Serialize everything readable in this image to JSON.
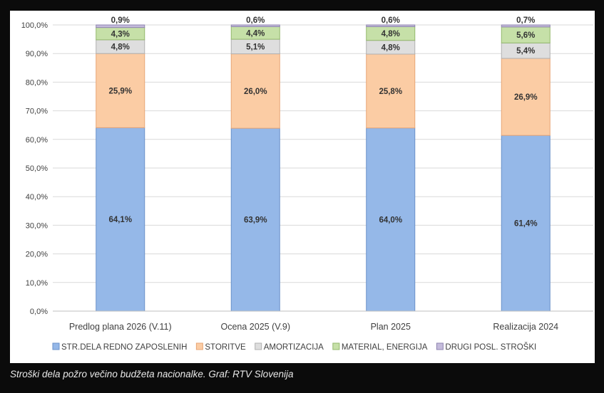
{
  "caption": "Stroški dela požro večino budžeta nacionalke. Graf: RTV Slovenija",
  "chart_data": {
    "type": "stacked-bar-100",
    "categories": [
      "Predlog plana 2026 (V.11)",
      "Ocena 2025 (V.9)",
      "Plan 2025",
      "Realizacija 2024"
    ],
    "ylim": [
      0,
      100
    ],
    "yticks": [
      "0,0%",
      "10,0%",
      "20,0%",
      "30,0%",
      "40,0%",
      "50,0%",
      "60,0%",
      "70,0%",
      "80,0%",
      "90,0%",
      "100,0%"
    ],
    "grid": true,
    "legend_position": "bottom",
    "series": [
      {
        "name": "STR.DELA REDNO ZAPOSLENIH",
        "color": "#95b8e8",
        "stroke": "#6a91c9",
        "values": [
          64.1,
          63.9,
          64.0,
          61.4
        ],
        "labels": [
          "64,1%",
          "63,9%",
          "64,0%",
          "61,4%"
        ]
      },
      {
        "name": "STORITVE",
        "color": "#fbcca4",
        "stroke": "#e8a676",
        "values": [
          25.9,
          26.0,
          25.8,
          26.9
        ],
        "labels": [
          "25,9%",
          "26,0%",
          "25,8%",
          "26,9%"
        ]
      },
      {
        "name": "AMORTIZACIJA",
        "color": "#dedede",
        "stroke": "#b0b0b0",
        "values": [
          4.8,
          5.1,
          4.8,
          5.4
        ],
        "labels": [
          "4,8%",
          "5,1%",
          "4,8%",
          "5,4%"
        ]
      },
      {
        "name": "MATERIAL, ENERGIJA",
        "color": "#c6e0a8",
        "stroke": "#93b86c",
        "values": [
          4.3,
          4.4,
          4.8,
          5.6
        ],
        "labels": [
          "4,3%",
          "4,4%",
          "4,8%",
          "5,6%"
        ]
      },
      {
        "name": "DRUGI POSL. STROŠKI",
        "color": "#c4bbdb",
        "stroke": "#8f85b0",
        "values": [
          0.9,
          0.6,
          0.6,
          0.7
        ],
        "labels": [
          "0,9%",
          "0,6%",
          "0,6%",
          "0,7%"
        ]
      }
    ]
  }
}
